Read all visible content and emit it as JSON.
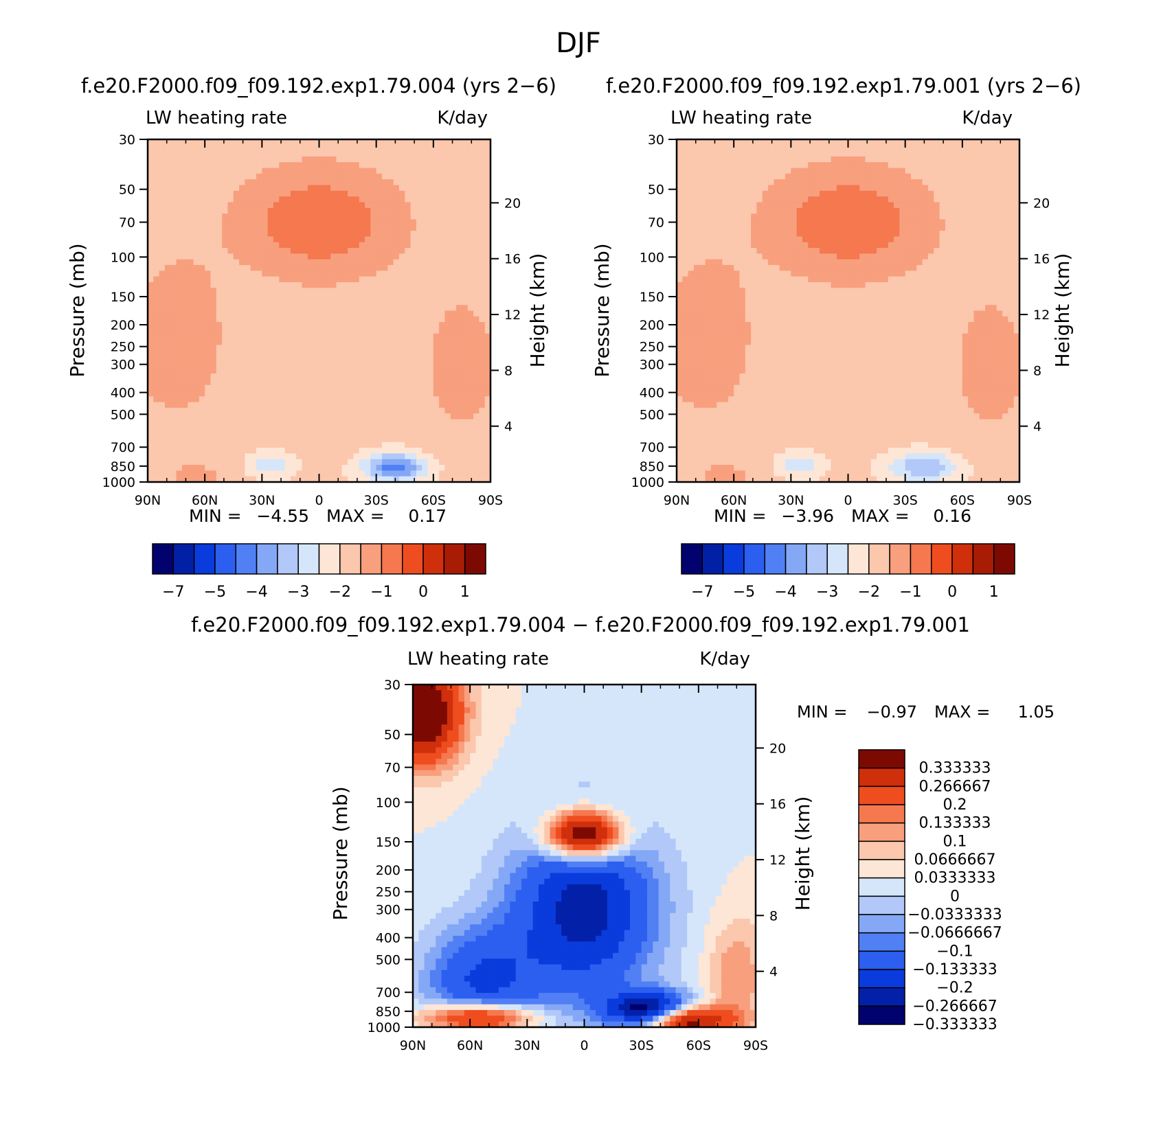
{
  "figure": {
    "title": "DJF"
  },
  "palette": {
    "blue_to_red": [
      "#02026e",
      "#0220a6",
      "#0a3bdc",
      "#2c5ff0",
      "#517ff4",
      "#84a8f6",
      "#b1c8f8",
      "#d6e6fa",
      "#fde6d6",
      "#fbc7ad",
      "#f89f7e",
      "#f5784f",
      "#ef4d1f",
      "#d02f0c",
      "#a81c05",
      "#7d0a02"
    ],
    "diff": [
      "#02026e",
      "#0320a8",
      "#0a3bdc",
      "#2c5ff0",
      "#517ff4",
      "#84a8f6",
      "#b1c8f8",
      "#d6e6fa",
      "#fde6d6",
      "#fbc7ad",
      "#f89f7e",
      "#f5784f",
      "#ef4d1f",
      "#d02f0c",
      "#7d0a02"
    ]
  },
  "chart_data": [
    {
      "type": "contour",
      "title": "f.e20.F2000.f09_f09.192.exp1.79.004 (yrs 2−6)",
      "variable": "LW heating rate",
      "units": "K/day",
      "ylabel": "Pressure (mb)",
      "y2label": "Height (km)",
      "x_ticks": [
        "90N",
        "60N",
        "30N",
        "0",
        "30S",
        "60S",
        "90S"
      ],
      "y_ticks": [
        "30",
        "50",
        "70",
        "100",
        "150",
        "200",
        "250",
        "300",
        "400",
        "500",
        "700",
        "850",
        "1000"
      ],
      "y2_ticks": [
        "20",
        "16",
        "12",
        "8",
        "4"
      ],
      "ylim": [
        1000,
        30
      ],
      "min_label": "MIN =",
      "min": "−4.55",
      "max_label": "MAX =",
      "max": "0.17",
      "colorbar_labels": [
        "−7",
        "−5",
        "−4",
        "−3",
        "−2",
        "−1",
        "0",
        "1"
      ],
      "field": "exp004"
    },
    {
      "type": "contour",
      "title": "f.e20.F2000.f09_f09.192.exp1.79.001 (yrs 2−6)",
      "variable": "LW heating rate",
      "units": "K/day",
      "ylabel": "Pressure (mb)",
      "y2label": "Height (km)",
      "x_ticks": [
        "90N",
        "60N",
        "30N",
        "0",
        "30S",
        "60S",
        "90S"
      ],
      "y_ticks": [
        "30",
        "50",
        "70",
        "100",
        "150",
        "200",
        "250",
        "300",
        "400",
        "500",
        "700",
        "850",
        "1000"
      ],
      "y2_ticks": [
        "20",
        "16",
        "12",
        "8",
        "4"
      ],
      "ylim": [
        1000,
        30
      ],
      "min_label": "MIN =",
      "min": "−3.96",
      "max_label": "MAX =",
      "max": "0.16",
      "colorbar_labels": [
        "−7",
        "−5",
        "−4",
        "−3",
        "−2",
        "−1",
        "0",
        "1"
      ],
      "field": "exp001"
    },
    {
      "type": "contour",
      "title": "f.e20.F2000.f09_f09.192.exp1.79.004 − f.e20.F2000.f09_f09.192.exp1.79.001",
      "variable": "LW heating rate",
      "units": "K/day",
      "ylabel": "Pressure (mb)",
      "y2label": "Height (km)",
      "x_ticks": [
        "90N",
        "60N",
        "30N",
        "0",
        "30S",
        "60S",
        "90S"
      ],
      "y_ticks": [
        "30",
        "50",
        "70",
        "100",
        "150",
        "200",
        "250",
        "300",
        "400",
        "500",
        "700",
        "850",
        "1000"
      ],
      "y2_ticks": [
        "20",
        "16",
        "12",
        "8",
        "4"
      ],
      "ylim": [
        1000,
        30
      ],
      "min_label": "MIN =",
      "min": "−0.97",
      "max_label": "MAX =",
      "max": "1.05",
      "colorbar_labels": [
        "0.333333",
        "0.266667",
        "0.2",
        "0.133333",
        "0.1",
        "0.0666667",
        "0.0333333",
        "0",
        "−0.0333333",
        "−0.0666667",
        "−0.1",
        "−0.133333",
        "−0.2",
        "−0.266667",
        "−0.333333"
      ],
      "field": "diff"
    }
  ]
}
